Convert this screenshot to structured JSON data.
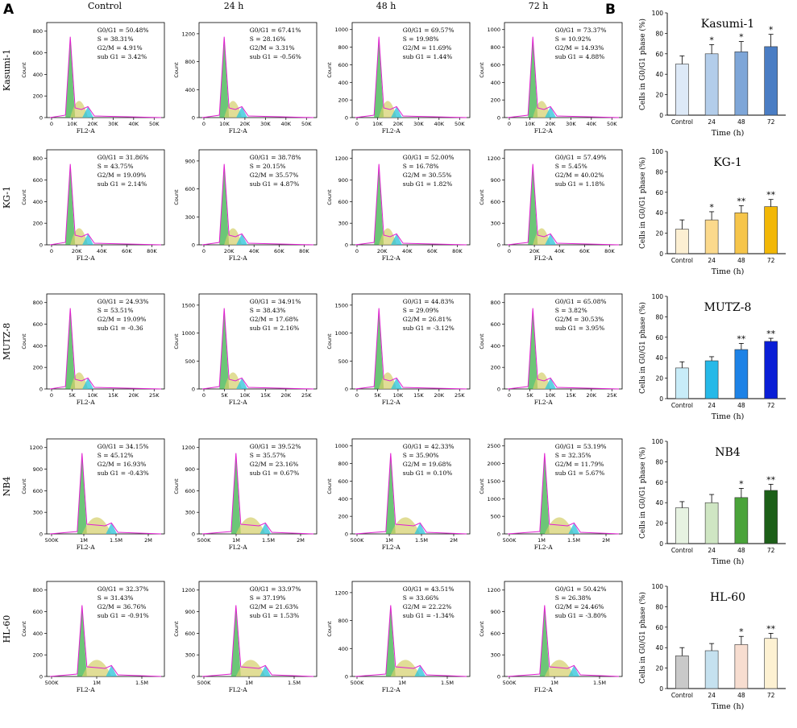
{
  "panel_labels": {
    "a": "A",
    "b": "B"
  },
  "columns": [
    "Control",
    "24 h",
    "48 h",
    "72 h"
  ],
  "count_label": "Count",
  "fl2_label": "FL2-A",
  "cell_lines": [
    {
      "name": "Kasumi-1",
      "yticks": [
        [
          "0",
          "200",
          "400",
          "600",
          "800"
        ],
        [
          "0",
          "400",
          "800",
          "1200"
        ],
        [
          "0",
          "200",
          "400",
          "600",
          "800",
          "1000"
        ],
        [
          "0",
          "200",
          "400",
          "600",
          "800",
          "1000"
        ]
      ],
      "xticks": [
        "0",
        "10K",
        "20K",
        "30K",
        "40K",
        "50K"
      ],
      "stats": [
        [
          "G0/G1 = 50.48%",
          "S = 38.31%",
          "G2/M = 4.91%",
          "sub G1 = 3.42%"
        ],
        [
          "G0/G1 = 67.41%",
          "S = 28.16%",
          "G2/M = 3.31%",
          "sub G1 = -0.56%"
        ],
        [
          "G0/G1 = 69.57%",
          "S = 19.98%",
          "G2/M = 11.69%",
          "sub G1 = 1.44%"
        ],
        [
          "G0/G1 = 73.37%",
          "S = 10.92%",
          "G2/M = 14.93%",
          "sub G1 = 4.88%"
        ]
      ]
    },
    {
      "name": "KG-1",
      "yticks": [
        [
          "0",
          "200",
          "400",
          "600",
          "800"
        ],
        [
          "0",
          "300",
          "600",
          "900"
        ],
        [
          "0",
          "300",
          "600",
          "900",
          "1200"
        ],
        [
          "0",
          "300",
          "600",
          "900",
          "1200"
        ]
      ],
      "xticks": [
        "0",
        "20K",
        "40K",
        "60K",
        "80K"
      ],
      "stats": [
        [
          "G0/G1 = 31.86%",
          "S = 43.75%",
          "G2/M = 19.09%",
          "sub G1 = 2.14%"
        ],
        [
          "G0/G1 = 38.78%",
          "S = 20.15%",
          "G2/M = 35.57%",
          "sub G1 = 4.87%"
        ],
        [
          "G0/G1 = 52.00%",
          "S = 16.78%",
          "G2/M = 30.55%",
          "sub G1 = 1.82%"
        ],
        [
          "G0/G1 = 57.49%",
          "S = 5.45%",
          "G2/M = 40.02%",
          "sub G1 = 1.18%"
        ]
      ]
    },
    {
      "name": "MUTZ-8",
      "yticks": [
        [
          "0",
          "200",
          "400",
          "600",
          "800"
        ],
        [
          "0",
          "500",
          "1000",
          "1500"
        ],
        [
          "0",
          "500",
          "1000",
          "1500"
        ],
        [
          "0",
          "200",
          "400",
          "600",
          "800"
        ]
      ],
      "xticks": [
        "0",
        "5K",
        "10K",
        "15K",
        "20K",
        "25K"
      ],
      "stats": [
        [
          "G0/G1 = 24.93%",
          "S = 53.51%",
          "G2/M = 19.09%",
          "sub G1 = -0.36"
        ],
        [
          "G0/G1 = 34.91%",
          "S = 38.43%",
          "G2/M = 17.68%",
          "sub G1 = 2.16%"
        ],
        [
          "G0/G1 = 44.83%",
          "S = 29.09%",
          "G2/M = 26.81%",
          "sub G1 = -3.12%"
        ],
        [
          "G0/G1 = 65.08%",
          "S = 3.82%",
          "G2/M = 30.53%",
          "sub G1 = 3.95%"
        ]
      ]
    },
    {
      "name": "NB4",
      "yticks": [
        [
          "0",
          "300",
          "600",
          "900",
          "1200"
        ],
        [
          "0",
          "300",
          "600",
          "900",
          "1200"
        ],
        [
          "0",
          "200",
          "400",
          "600",
          "800",
          "1000"
        ],
        [
          "0",
          "500",
          "1000",
          "1500",
          "2000",
          "2500"
        ]
      ],
      "xticks": [
        "500K",
        "1M",
        "1.5M",
        "2M"
      ],
      "stats": [
        [
          "G0/G1 = 34.15%",
          "S = 45.12%",
          "G2/M = 16.93%",
          "sub G1 = -0.43%"
        ],
        [
          "G0/G1 = 39.52%",
          "S = 35.57%",
          "G2/M = 23.16%",
          "sub G1 = 0.67%"
        ],
        [
          "G0/G1 = 42.33%",
          "S = 35.90%",
          "G2/M = 19.68%",
          "sub G1 = 0.10%"
        ],
        [
          "G0/G1 = 53.19%",
          "S = 32.35%",
          "G2/M = 11.79%",
          "sub G1 = 5.67%"
        ]
      ]
    },
    {
      "name": "HL-60",
      "yticks": [
        [
          "0",
          "200",
          "400",
          "600",
          "800"
        ],
        [
          "0",
          "300",
          "600",
          "900",
          "1200"
        ],
        [
          "0",
          "400",
          "800",
          "1200"
        ],
        [
          "0",
          "300",
          "600",
          "900",
          "1200"
        ]
      ],
      "xticks": [
        "500K",
        "1M",
        "1.5M"
      ],
      "stats": [
        [
          "G0/G1 = 32.37%",
          "S = 31.43%",
          "G2/M = 36.76%",
          "sub G1 = -0.91%"
        ],
        [
          "G0/G1 = 33.97%",
          "S = 37.19%",
          "G2/M = 21.63%",
          "sub G1 = 1.53%"
        ],
        [
          "G0/G1 = 43.51%",
          "S = 33.66%",
          "G2/M = 22.22%",
          "sub G1 = -1.34%"
        ],
        [
          "G0/G1 = 50.42%",
          "S = 26.38%",
          "G2/M = 24.46%",
          "sub G1 = -3.80%"
        ]
      ]
    }
  ],
  "chart_data": [
    {
      "type": "bar",
      "title": "Kasumi-1",
      "categories": [
        "Control",
        "24",
        "48",
        "72"
      ],
      "values": [
        50,
        60,
        62,
        67
      ],
      "errors": [
        8,
        9,
        10,
        12
      ],
      "significance": [
        "",
        "*",
        "*",
        "*"
      ],
      "colors": [
        "#dde9f7",
        "#b3cdea",
        "#7ea6d8",
        "#4a7dc4"
      ],
      "xlabel": "Time (h)",
      "ylabel": "Cells in G0/G1 phase (%)",
      "ylim": [
        0,
        100
      ],
      "yticks": [
        "0",
        "20",
        "40",
        "60",
        "80",
        "100"
      ]
    },
    {
      "type": "bar",
      "title": "KG-1",
      "categories": [
        "Control",
        "24",
        "48",
        "72"
      ],
      "values": [
        24,
        33,
        40,
        46
      ],
      "errors": [
        9,
        8,
        7,
        7
      ],
      "significance": [
        "",
        "*",
        "**",
        "**"
      ],
      "colors": [
        "#fcefd2",
        "#fbd98c",
        "#f6c54a",
        "#f2b705"
      ],
      "xlabel": "Time (h)",
      "ylabel": "Cells in G0/G1 phase (%)",
      "ylim": [
        0,
        100
      ],
      "yticks": [
        "0",
        "20",
        "40",
        "60",
        "80",
        "100"
      ]
    },
    {
      "type": "bar",
      "title": "MUTZ-8",
      "categories": [
        "Control",
        "24",
        "48",
        "72"
      ],
      "values": [
        30,
        37,
        48,
        56
      ],
      "errors": [
        6,
        4,
        6,
        3
      ],
      "significance": [
        "",
        "",
        "**",
        "**"
      ],
      "colors": [
        "#c8ecf8",
        "#26b9e8",
        "#1d82e6",
        "#0a1ed6"
      ],
      "xlabel": "Time (h)",
      "ylabel": "Cells in G0/G1 phase (%)",
      "ylim": [
        0,
        100
      ],
      "yticks": [
        "0",
        "20",
        "40",
        "60",
        "80",
        "100"
      ]
    },
    {
      "type": "bar",
      "title": "NB4",
      "categories": [
        "Control",
        "24",
        "48",
        "72"
      ],
      "values": [
        35,
        40,
        45,
        52
      ],
      "errors": [
        6,
        8,
        9,
        6
      ],
      "significance": [
        "",
        "",
        "*",
        "**"
      ],
      "colors": [
        "#e6f2e1",
        "#cfe6c3",
        "#4aa33a",
        "#1c5f18"
      ],
      "xlabel": "Time (h)",
      "ylabel": "Cells in G0/G1 phase (%)",
      "ylim": [
        0,
        100
      ],
      "yticks": [
        "0",
        "20",
        "40",
        "60",
        "80",
        "100"
      ]
    },
    {
      "type": "bar",
      "title": "HL-60",
      "categories": [
        "Control",
        "24",
        "48",
        "72"
      ],
      "values": [
        32,
        37,
        43,
        49
      ],
      "errors": [
        8,
        7,
        8,
        5
      ],
      "significance": [
        "",
        "",
        "*",
        "**"
      ],
      "colors": [
        "#c9c9c9",
        "#c5e1ef",
        "#f7ddd0",
        "#fdf1d2"
      ],
      "xlabel": "Time (h)",
      "ylabel": "Cells in G0/G1 phase (%)",
      "ylim": [
        0,
        100
      ],
      "yticks": [
        "0",
        "20",
        "40",
        "60",
        "80",
        "100"
      ]
    }
  ]
}
